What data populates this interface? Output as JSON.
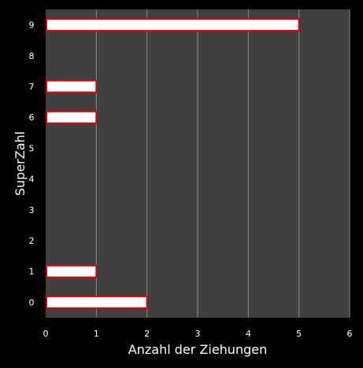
{
  "chart_data": {
    "type": "bar",
    "orientation": "horizontal",
    "title": "",
    "xlabel": "Anzahl der Ziehungen",
    "ylabel": "SuperZahl",
    "categories": [
      "0",
      "1",
      "2",
      "3",
      "4",
      "5",
      "6",
      "7",
      "8",
      "9"
    ],
    "values": [
      2,
      1,
      0,
      0,
      0,
      0,
      1,
      1,
      0,
      5
    ],
    "xlim": [
      0,
      6
    ],
    "xticks": [
      "0",
      "1",
      "2",
      "3",
      "4",
      "5",
      "6"
    ],
    "grid": "vertical",
    "legend": "none",
    "colors": {
      "background": "#000000",
      "plot_background": "#404040",
      "gridline": "#8a8a8a",
      "bar_fill": "#ffffff",
      "bar_stroke": "#e00000",
      "text": "#ffffff"
    }
  }
}
